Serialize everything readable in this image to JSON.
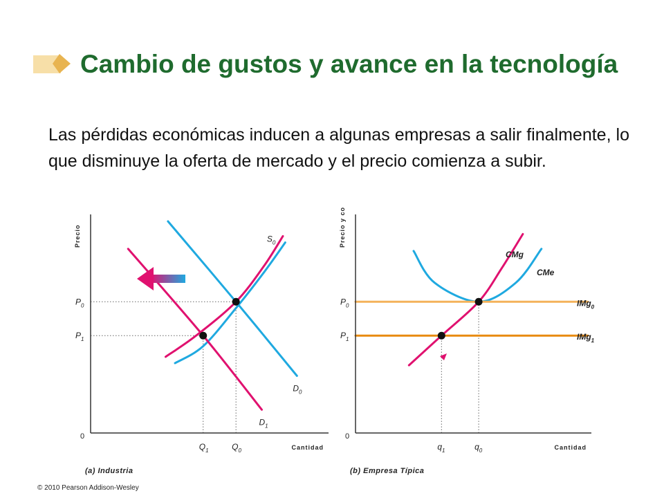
{
  "slide": {
    "title": "Cambio de gustos y avance en la tecnología",
    "body": "Las pérdidas económicas inducen a algunas empresas a salir finalmente, lo que disminuye la oferta de mercado y el precio comienza a subir.",
    "copyright": "© 2010 Pearson Addison-Wesley",
    "colors": {
      "title": "#1f6b2e",
      "supply": "#e0116f",
      "demand": "#1fa9e0",
      "mr0": "#f4b25a",
      "mr1": "#e88a10"
    }
  },
  "chart_data": [
    {
      "type": "line",
      "panel_caption": "(a) Industria",
      "ylabel": "Precio",
      "xlabel": "Cantidad",
      "origin_label": "0",
      "yticks": [
        {
          "main": "P",
          "sub": "0",
          "value": 0.62
        },
        {
          "main": "P",
          "sub": "1",
          "value": 0.46
        }
      ],
      "xticks": [
        {
          "main": "Q",
          "sub": "1",
          "value": 0.48
        },
        {
          "main": "Q",
          "sub": "0",
          "value": 0.62
        }
      ],
      "xlim": [
        0,
        1
      ],
      "ylim": [
        0,
        1
      ],
      "series": [
        {
          "name": "S0",
          "label_main": "S",
          "label_sub": "0",
          "color": "#e0116f",
          "points": [
            [
              0.32,
              0.36
            ],
            [
              0.45,
              0.46
            ],
            [
              0.62,
              0.62
            ],
            [
              0.74,
              0.79
            ],
            [
              0.82,
              0.93
            ]
          ]
        },
        {
          "name": "S1",
          "color": "#1fa9e0",
          "points": [
            [
              0.36,
              0.33
            ],
            [
              0.48,
              0.41
            ],
            [
              0.62,
              0.59
            ],
            [
              0.74,
              0.76
            ],
            [
              0.83,
              0.9
            ]
          ]
        },
        {
          "name": "D0",
          "label_main": "D",
          "label_sub": "0",
          "color": "#1fa9e0",
          "points": [
            [
              0.33,
              1.0
            ],
            [
              0.62,
              0.62
            ],
            [
              0.88,
              0.27
            ]
          ]
        },
        {
          "name": "D1",
          "label_main": "D",
          "label_sub": "1",
          "color": "#e0116f",
          "points": [
            [
              0.16,
              0.87
            ],
            [
              0.48,
              0.46
            ],
            [
              0.73,
              0.11
            ]
          ]
        }
      ],
      "equilibria": [
        {
          "x": 0.62,
          "y": 0.62
        },
        {
          "x": 0.48,
          "y": 0.46
        }
      ],
      "annotations": [
        "shift arrow pointing left"
      ]
    },
    {
      "type": "line",
      "panel_caption": "(b) Empresa Típica",
      "ylabel": "Precio y costo",
      "xlabel": "Cantidad",
      "origin_label": "0",
      "yticks": [
        {
          "main": "P",
          "sub": "0",
          "value": 0.62
        },
        {
          "main": "P",
          "sub": "1",
          "value": 0.46
        }
      ],
      "xticks": [
        {
          "main": "q",
          "sub": "1",
          "value": 0.37
        },
        {
          "main": "q",
          "sub": "0",
          "value": 0.53
        }
      ],
      "xlim": [
        0,
        1
      ],
      "ylim": [
        0,
        1
      ],
      "series": [
        {
          "name": "CMg",
          "color": "#e0116f",
          "points": [
            [
              0.23,
              0.32
            ],
            [
              0.37,
              0.46
            ],
            [
              0.53,
              0.62
            ],
            [
              0.63,
              0.78
            ],
            [
              0.72,
              0.94
            ]
          ]
        },
        {
          "name": "CMe",
          "color": "#1fa9e0",
          "points": [
            [
              0.25,
              0.86
            ],
            [
              0.34,
              0.71
            ],
            [
              0.53,
              0.62
            ],
            [
              0.69,
              0.71
            ],
            [
              0.8,
              0.87
            ]
          ]
        },
        {
          "name": "IMg0",
          "label_main": "IMg",
          "label_sub": "0",
          "color": "#f4b25a",
          "points": [
            [
              0.0,
              0.62
            ],
            [
              1.0,
              0.62
            ]
          ]
        },
        {
          "name": "IMg1",
          "label_main": "IMg",
          "label_sub": "1",
          "color": "#e88a10",
          "points": [
            [
              0.0,
              0.46
            ],
            [
              1.0,
              0.46
            ]
          ]
        }
      ],
      "equilibria": [
        {
          "x": 0.53,
          "y": 0.62
        },
        {
          "x": 0.37,
          "y": 0.46
        }
      ]
    }
  ]
}
